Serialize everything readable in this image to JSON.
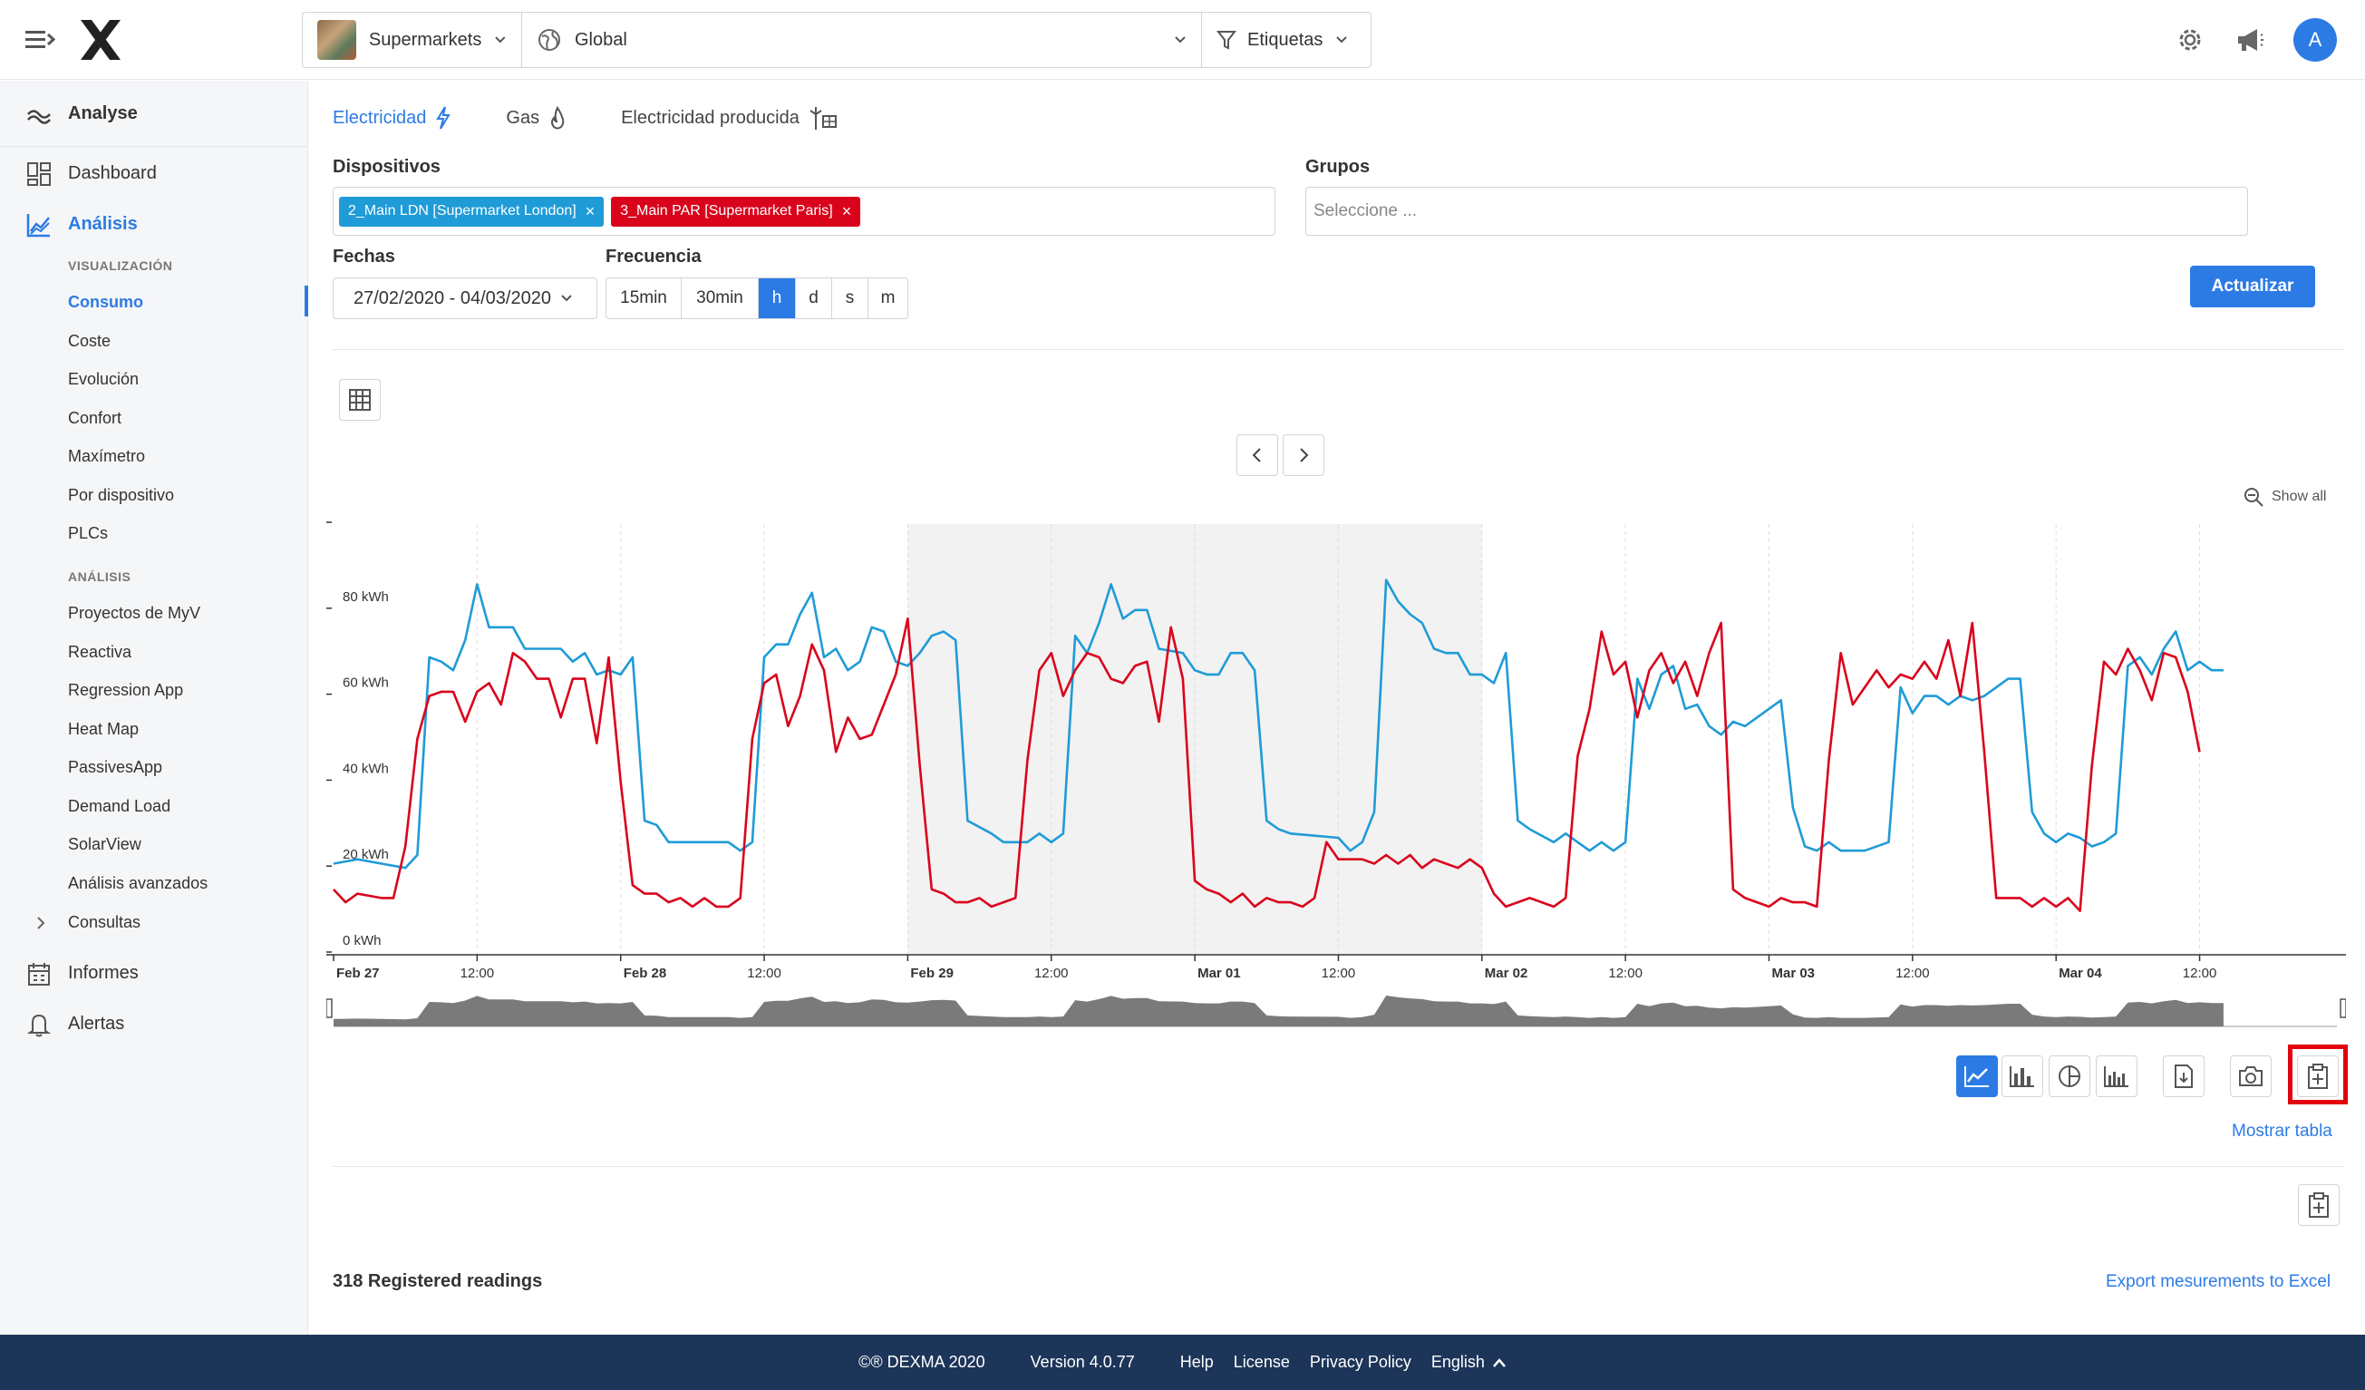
{
  "header": {
    "selector_site": "Supermarkets",
    "selector_scope": "Global",
    "selector_tags": "Etiquetas",
    "avatar_initial": "A"
  },
  "sidebar": {
    "analyse": "Analyse",
    "dashboard": "Dashboard",
    "analisis": "Análisis",
    "section_visualizacion": "VISUALIZACIÓN",
    "visualizacion_items": [
      "Consumo",
      "Coste",
      "Evolución",
      "Confort",
      "Maxímetro",
      "Por dispositivo",
      "PLCs"
    ],
    "section_analisis": "ANÁLISIS",
    "analisis_items": [
      "Proyectos de MyV",
      "Reactiva",
      "Regression App",
      "Heat Map",
      "PassivesApp",
      "Demand Load",
      "SolarView",
      "Análisis avanzados"
    ],
    "consultas": "Consultas",
    "informes": "Informes",
    "alertas": "Alertas"
  },
  "main": {
    "tabs": [
      "Electricidad",
      "Gas",
      "Electricidad producida"
    ],
    "devices_label": "Dispositivos",
    "devices": [
      {
        "label": "2_Main LDN [Supermarket London]",
        "color": "#1f9bd7"
      },
      {
        "label": "3_Main PAR [Supermarket Paris]",
        "color": "#d9041c"
      }
    ],
    "groups_label": "Grupos",
    "groups_placeholder": "Seleccione ...",
    "dates_label": "Fechas",
    "date_range": "27/02/2020 - 04/03/2020",
    "frequency_label": "Frecuencia",
    "frequency_options": [
      "15min",
      "30min",
      "h",
      "d",
      "s",
      "m"
    ],
    "frequency_selected": "h",
    "update_button": "Actualizar",
    "show_all": "Show all",
    "show_table": "Mostrar tabla",
    "registered_readings": "318 Registered readings",
    "export_link": "Export mesurements to Excel"
  },
  "chart_data": {
    "type": "line",
    "ylabel": "",
    "ylim": [
      0,
      100
    ],
    "yticks": [
      "0 kWh",
      "20 kWh",
      "40 kWh",
      "60 kWh",
      "80 kWh"
    ],
    "xticks": [
      "Feb 27",
      "12:00",
      "Feb 28",
      "12:00",
      "Feb 29",
      "12:00",
      "Mar 01",
      "12:00",
      "Mar 02",
      "12:00",
      "Mar 03",
      "12:00",
      "Mar 04",
      "12:00"
    ],
    "xlim_hours": [
      0,
      168
    ],
    "highlight_range_hours": [
      48,
      96
    ],
    "series": [
      {
        "name": "2_Main LDN [Supermarket London]",
        "color": "#1f9bd7",
        "points": [
          [
            0,
            21
          ],
          [
            2,
            22
          ],
          [
            4,
            21
          ],
          [
            6,
            20
          ],
          [
            7,
            23
          ],
          [
            8,
            69
          ],
          [
            9,
            68
          ],
          [
            10,
            66
          ],
          [
            11,
            73
          ],
          [
            12,
            86
          ],
          [
            13,
            76
          ],
          [
            15,
            76
          ],
          [
            16,
            71
          ],
          [
            19,
            71
          ],
          [
            20,
            68
          ],
          [
            21,
            70
          ],
          [
            22,
            65
          ],
          [
            23,
            66
          ],
          [
            24,
            65
          ],
          [
            25,
            69
          ],
          [
            26,
            31
          ],
          [
            27,
            30
          ],
          [
            28,
            26
          ],
          [
            33,
            26
          ],
          [
            34,
            24
          ],
          [
            35,
            26
          ],
          [
            36,
            69
          ],
          [
            37,
            72
          ],
          [
            38,
            72
          ],
          [
            39,
            79
          ],
          [
            40,
            84
          ],
          [
            41,
            69
          ],
          [
            42,
            71
          ],
          [
            43,
            66
          ],
          [
            44,
            68
          ],
          [
            45,
            76
          ],
          [
            46,
            75
          ],
          [
            47,
            68
          ],
          [
            48,
            67
          ],
          [
            49,
            70
          ],
          [
            50,
            74
          ],
          [
            51,
            75
          ],
          [
            52,
            73
          ],
          [
            53,
            31
          ],
          [
            55,
            28
          ],
          [
            56,
            26
          ],
          [
            58,
            26
          ],
          [
            59,
            28
          ],
          [
            60,
            26
          ],
          [
            61,
            28
          ],
          [
            62,
            74
          ],
          [
            63,
            70
          ],
          [
            64,
            77
          ],
          [
            65,
            86
          ],
          [
            66,
            78
          ],
          [
            67,
            80
          ],
          [
            68,
            80
          ],
          [
            69,
            71
          ],
          [
            71,
            70
          ],
          [
            72,
            66
          ],
          [
            73,
            65
          ],
          [
            74,
            65
          ],
          [
            75,
            70
          ],
          [
            76,
            70
          ],
          [
            77,
            66
          ],
          [
            78,
            31
          ],
          [
            79,
            29
          ],
          [
            80,
            28
          ],
          [
            84,
            27
          ],
          [
            85,
            24
          ],
          [
            86,
            26
          ],
          [
            87,
            33
          ],
          [
            88,
            87
          ],
          [
            89,
            82
          ],
          [
            90,
            79
          ],
          [
            91,
            77
          ],
          [
            92,
            71
          ],
          [
            93,
            70
          ],
          [
            94,
            70
          ],
          [
            95,
            65
          ],
          [
            96,
            65
          ],
          [
            97,
            63
          ],
          [
            98,
            70
          ],
          [
            99,
            31
          ],
          [
            100,
            29
          ],
          [
            102,
            26
          ],
          [
            103,
            28
          ],
          [
            104,
            26
          ],
          [
            105,
            24
          ],
          [
            106,
            26
          ],
          [
            107,
            24
          ],
          [
            108,
            26
          ],
          [
            109,
            64
          ],
          [
            110,
            57
          ],
          [
            111,
            65
          ],
          [
            112,
            67
          ],
          [
            113,
            57
          ],
          [
            114,
            58
          ],
          [
            115,
            53
          ],
          [
            116,
            51
          ],
          [
            117,
            54
          ],
          [
            118,
            53
          ],
          [
            119,
            55
          ],
          [
            120,
            57
          ],
          [
            121,
            59
          ],
          [
            122,
            34
          ],
          [
            123,
            25
          ],
          [
            124,
            24
          ],
          [
            125,
            26
          ],
          [
            126,
            24
          ],
          [
            128,
            24
          ],
          [
            130,
            26
          ],
          [
            131,
            62
          ],
          [
            132,
            56
          ],
          [
            133,
            60
          ],
          [
            134,
            60
          ],
          [
            135,
            58
          ],
          [
            136,
            60
          ],
          [
            137,
            59
          ],
          [
            138,
            60
          ],
          [
            139,
            62
          ],
          [
            140,
            64
          ],
          [
            141,
            64
          ],
          [
            142,
            33
          ],
          [
            143,
            28
          ],
          [
            144,
            26
          ],
          [
            145,
            28
          ],
          [
            146,
            27
          ],
          [
            147,
            25
          ],
          [
            148,
            26
          ],
          [
            149,
            28
          ],
          [
            150,
            67
          ],
          [
            151,
            69
          ],
          [
            152,
            65
          ],
          [
            153,
            71
          ],
          [
            154,
            75
          ],
          [
            155,
            66
          ],
          [
            156,
            68
          ],
          [
            157,
            66
          ],
          [
            158,
            66
          ]
        ]
      },
      {
        "name": "3_Main PAR [Supermarket Paris]",
        "color": "#d9041c",
        "points": [
          [
            0,
            15
          ],
          [
            1,
            12
          ],
          [
            2,
            14
          ],
          [
            4,
            13
          ],
          [
            5,
            13
          ],
          [
            6,
            25
          ],
          [
            7,
            50
          ],
          [
            8,
            60
          ],
          [
            9,
            61
          ],
          [
            10,
            61
          ],
          [
            11,
            54
          ],
          [
            12,
            61
          ],
          [
            13,
            63
          ],
          [
            14,
            58
          ],
          [
            15,
            70
          ],
          [
            16,
            68
          ],
          [
            17,
            64
          ],
          [
            18,
            64
          ],
          [
            19,
            55
          ],
          [
            20,
            64
          ],
          [
            21,
            64
          ],
          [
            22,
            49
          ],
          [
            23,
            69
          ],
          [
            24,
            40
          ],
          [
            25,
            16
          ],
          [
            26,
            14
          ],
          [
            27,
            14
          ],
          [
            28,
            12
          ],
          [
            29,
            13
          ],
          [
            30,
            11
          ],
          [
            31,
            13
          ],
          [
            32,
            11
          ],
          [
            33,
            11
          ],
          [
            34,
            13
          ],
          [
            35,
            50
          ],
          [
            36,
            63
          ],
          [
            37,
            65
          ],
          [
            38,
            53
          ],
          [
            39,
            60
          ],
          [
            40,
            72
          ],
          [
            41,
            66
          ],
          [
            42,
            47
          ],
          [
            43,
            55
          ],
          [
            44,
            50
          ],
          [
            45,
            51
          ],
          [
            46,
            58
          ],
          [
            47,
            65
          ],
          [
            48,
            78
          ],
          [
            49,
            44
          ],
          [
            50,
            15
          ],
          [
            51,
            14
          ],
          [
            52,
            12
          ],
          [
            53,
            12
          ],
          [
            54,
            13
          ],
          [
            55,
            11
          ],
          [
            56,
            12
          ],
          [
            57,
            13
          ],
          [
            58,
            45
          ],
          [
            59,
            66
          ],
          [
            60,
            70
          ],
          [
            61,
            60
          ],
          [
            62,
            66
          ],
          [
            63,
            70
          ],
          [
            64,
            69
          ],
          [
            65,
            64
          ],
          [
            66,
            63
          ],
          [
            67,
            67
          ],
          [
            68,
            68
          ],
          [
            69,
            54
          ],
          [
            70,
            76
          ],
          [
            71,
            64
          ],
          [
            72,
            17
          ],
          [
            73,
            15
          ],
          [
            74,
            14
          ],
          [
            75,
            12
          ],
          [
            76,
            14
          ],
          [
            77,
            11
          ],
          [
            78,
            13
          ],
          [
            79,
            12
          ],
          [
            80,
            12
          ],
          [
            81,
            11
          ],
          [
            82,
            13
          ],
          [
            83,
            26
          ],
          [
            84,
            22
          ],
          [
            85,
            22
          ],
          [
            86,
            22
          ],
          [
            87,
            21
          ],
          [
            88,
            23
          ],
          [
            89,
            21
          ],
          [
            90,
            23
          ],
          [
            91,
            20
          ],
          [
            92,
            22
          ],
          [
            93,
            21
          ],
          [
            94,
            20
          ],
          [
            95,
            22
          ],
          [
            96,
            20
          ],
          [
            97,
            14
          ],
          [
            98,
            11
          ],
          [
            99,
            12
          ],
          [
            100,
            13
          ],
          [
            101,
            12
          ],
          [
            102,
            11
          ],
          [
            103,
            13
          ],
          [
            104,
            46
          ],
          [
            105,
            57
          ],
          [
            106,
            75
          ],
          [
            107,
            65
          ],
          [
            108,
            68
          ],
          [
            109,
            55
          ],
          [
            110,
            66
          ],
          [
            111,
            70
          ],
          [
            112,
            63
          ],
          [
            113,
            68
          ],
          [
            114,
            60
          ],
          [
            115,
            70
          ],
          [
            116,
            77
          ],
          [
            117,
            15
          ],
          [
            118,
            13
          ],
          [
            119,
            12
          ],
          [
            120,
            11
          ],
          [
            121,
            13
          ],
          [
            122,
            12
          ],
          [
            123,
            12
          ],
          [
            124,
            11
          ],
          [
            125,
            45
          ],
          [
            126,
            70
          ],
          [
            127,
            58
          ],
          [
            128,
            62
          ],
          [
            129,
            66
          ],
          [
            130,
            62
          ],
          [
            131,
            65
          ],
          [
            132,
            64
          ],
          [
            133,
            68
          ],
          [
            134,
            64
          ],
          [
            135,
            73
          ],
          [
            136,
            60
          ],
          [
            137,
            77
          ],
          [
            138,
            47
          ],
          [
            139,
            13
          ],
          [
            140,
            13
          ],
          [
            141,
            13
          ],
          [
            142,
            11
          ],
          [
            143,
            13
          ],
          [
            144,
            11
          ],
          [
            145,
            13
          ],
          [
            146,
            10
          ],
          [
            147,
            44
          ],
          [
            148,
            68
          ],
          [
            149,
            65
          ],
          [
            150,
            71
          ],
          [
            151,
            66
          ],
          [
            152,
            59
          ],
          [
            153,
            70
          ],
          [
            154,
            69
          ],
          [
            155,
            61
          ],
          [
            156,
            47
          ]
        ]
      }
    ]
  },
  "footer": {
    "copyright": "©® DEXMA 2020",
    "version": "Version 4.0.77",
    "help": "Help",
    "license": "License",
    "privacy": "Privacy Policy",
    "language": "English"
  },
  "icons": {
    "accent": "#2c7be5",
    "footer_bg": "#1d3559",
    "highlight": "#e3000f"
  }
}
